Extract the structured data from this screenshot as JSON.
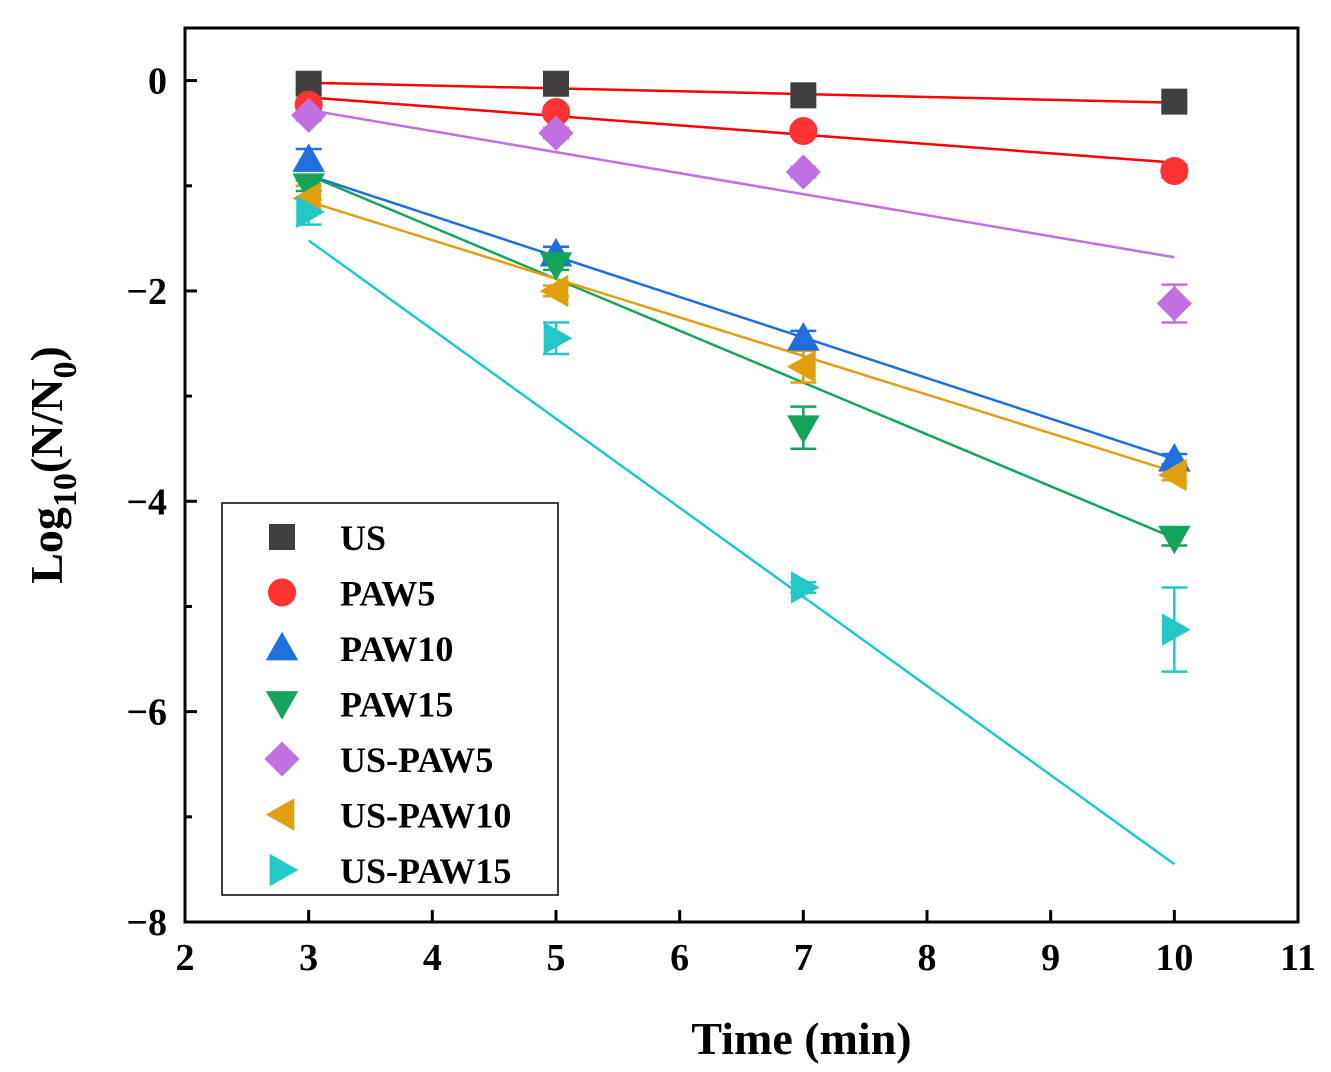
{
  "chart_data": {
    "type": "scatter",
    "title": "",
    "xlabel": "Time (min)",
    "ylabel": {
      "base": "Log",
      "sub": "10",
      "rest": "(N/N",
      "sub2": "0",
      "end": ")"
    },
    "xlim": [
      2,
      11
    ],
    "ylim": [
      -8,
      0.5
    ],
    "xticks": [
      "2",
      "3",
      "4",
      "5",
      "6",
      "7",
      "8",
      "9",
      "10",
      "11"
    ],
    "yticks": [
      "0",
      "−2",
      "−4",
      "−6",
      "−8"
    ],
    "ytick_values": [
      0,
      -2,
      -4,
      -6,
      -8
    ],
    "xtick_values": [
      2,
      3,
      4,
      5,
      6,
      7,
      8,
      9,
      10,
      11
    ],
    "x": [
      3,
      5,
      7,
      10
    ],
    "series": [
      {
        "name": "US",
        "marker": "square",
        "color": "#404040",
        "values": [
          -0.03,
          -0.03,
          -0.14,
          -0.2
        ],
        "errors": [
          0.05,
          0.04,
          0.04,
          0.04
        ],
        "fit": [
          -0.02,
          -0.21
        ],
        "fit_color": "#ff0000"
      },
      {
        "name": "PAW5",
        "marker": "circle",
        "color": "#ff3333",
        "values": [
          -0.23,
          -0.3,
          -0.48,
          -0.86
        ],
        "errors": [
          0.05,
          0.05,
          0.05,
          0.06
        ],
        "fit": [
          -0.16,
          -0.78
        ],
        "fit_color": "#ff0000"
      },
      {
        "name": "PAW10",
        "marker": "triangle-up",
        "color": "#1f6fdc",
        "values": [
          -0.75,
          -1.65,
          -2.45,
          -3.6
        ],
        "errors": [
          0.1,
          0.07,
          0.07,
          0.05
        ],
        "fit": [
          -0.9,
          -3.6
        ],
        "fit_color": "#1f6fdc"
      },
      {
        "name": "PAW15",
        "marker": "triangle-down",
        "color": "#14a55a",
        "values": [
          -1.0,
          -1.75,
          -3.3,
          -4.35
        ],
        "errors": [
          0.05,
          0.05,
          0.2,
          0.07
        ],
        "fit": [
          -0.9,
          -4.35
        ],
        "fit_color": "#14a55a"
      },
      {
        "name": "US-PAW5",
        "marker": "diamond",
        "color": "#c070e0",
        "values": [
          -0.33,
          -0.5,
          -0.87,
          -2.12
        ],
        "errors": [
          0.05,
          0.05,
          0.05,
          0.18
        ],
        "fit": [
          -0.28,
          -1.68
        ],
        "fit_color": "#c070e0"
      },
      {
        "name": "US-PAW10",
        "marker": "triangle-left",
        "color": "#e0a010",
        "values": [
          -1.12,
          -2.0,
          -2.72,
          -3.75
        ],
        "errors": [
          0.12,
          0.05,
          0.15,
          0.05
        ],
        "fit": [
          -1.15,
          -3.72
        ],
        "fit_color": "#e0a010"
      },
      {
        "name": "US-PAW15",
        "marker": "triangle-right",
        "color": "#22c8c8",
        "values": [
          -1.25,
          -2.45,
          -4.82,
          -5.22
        ],
        "errors": [
          0.12,
          0.15,
          0.05,
          0.4
        ],
        "fit": [
          -1.52,
          -7.45
        ],
        "fit_color": "#22c8c8"
      }
    ],
    "legend_position": "bottom-left"
  }
}
